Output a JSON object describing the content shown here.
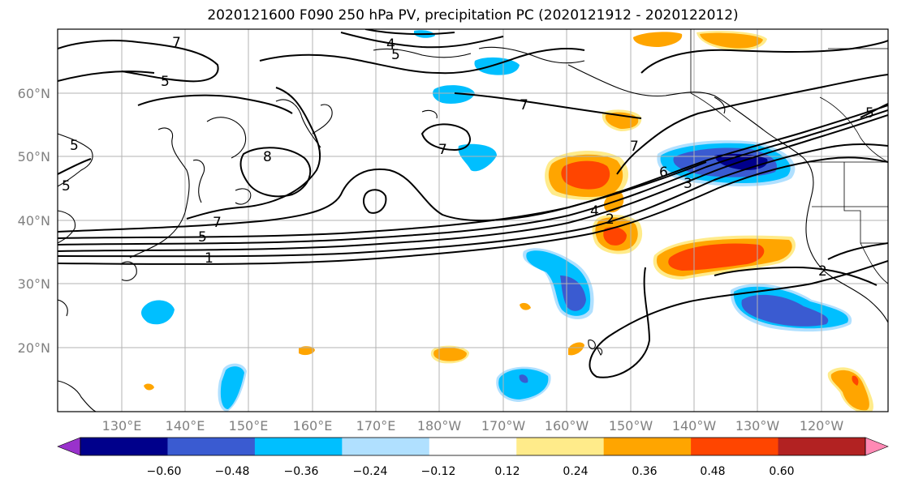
{
  "title": "2020121600 F090 250 hPa PV, precipitation PC (2020121912 - 2020122012)",
  "map": {
    "lat_labels": [
      "60°N",
      "50°N",
      "40°N",
      "30°N",
      "20°N"
    ],
    "lon_labels": [
      "130°E",
      "140°E",
      "150°E",
      "160°E",
      "170°E",
      "180°W",
      "170°W",
      "160°W",
      "150°W",
      "140°W",
      "130°W",
      "120°W"
    ],
    "contour_labels": [
      "7",
      "5",
      "4",
      "5",
      "7",
      "8",
      "7",
      "7",
      "7",
      "6",
      "3",
      "4",
      "2",
      "5",
      "1",
      "2",
      "5",
      "5",
      "5"
    ]
  },
  "colorbar": {
    "tick_labels": [
      "−0.60",
      "−0.48",
      "−0.36",
      "−0.24",
      "−0.12",
      "0.12",
      "0.24",
      "0.36",
      "0.48",
      "0.60"
    ],
    "colors": [
      "#9932CC",
      "#00008B",
      "#3A5BD1",
      "#00BFFF",
      "#B0E0FF",
      "#FFFFFF",
      "#FFEB8A",
      "#FFA500",
      "#FF4500",
      "#B22222",
      "#FF89B4"
    ]
  }
}
